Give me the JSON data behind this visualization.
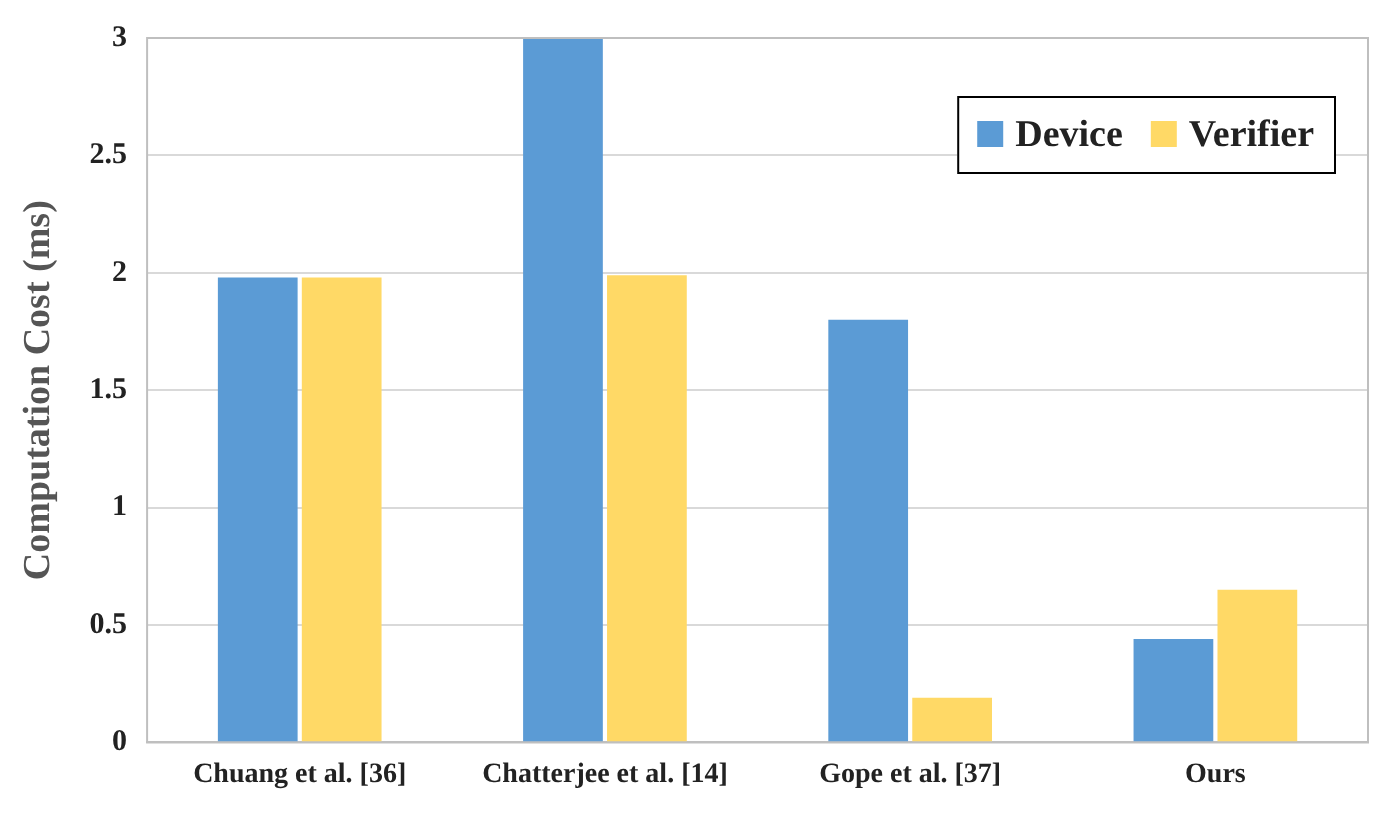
{
  "chart_data": {
    "type": "bar",
    "ylabel": "Computation Cost (ms)",
    "categories": [
      "Chuang et al. [36]",
      "Chatterjee et al. [14]",
      "Gope et al. [37]",
      "Ours"
    ],
    "series": [
      {
        "name": "Device",
        "color": "#5b9bd5",
        "values": [
          1.98,
          3.0,
          1.8,
          0.44
        ]
      },
      {
        "name": "Verifier",
        "color": "#ffd966",
        "values": [
          1.98,
          1.99,
          0.19,
          0.65
        ]
      }
    ],
    "ylim": [
      0,
      3
    ],
    "yticks": [
      0,
      0.5,
      1,
      1.5,
      2,
      2.5,
      3
    ],
    "grid": "y",
    "legend": "top right"
  }
}
